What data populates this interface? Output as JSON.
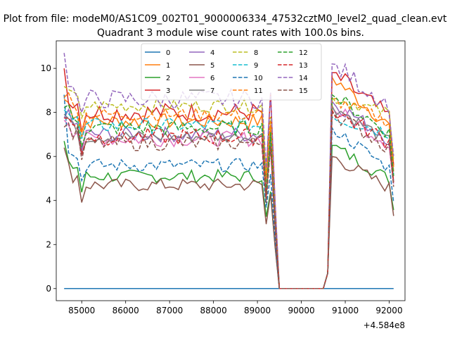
{
  "figure": {
    "suptitle": "Plot from file: modeM0/AS1C09_002T01_9000006334_47532cztM0_level2_quad_clean.evt"
  },
  "chart_data": {
    "type": "line",
    "title": "Quadrant 3 module wise count rates with 100.0s bins.",
    "xlabel": "",
    "ylabel": "",
    "x_offset_label": "+4.584e8",
    "xlim": [
      84420,
      92360
    ],
    "ylim": [
      -0.55,
      11.25
    ],
    "xticks": [
      85000,
      86000,
      87000,
      88000,
      89000,
      90000,
      91000,
      92000
    ],
    "xtick_labels": [
      "85000",
      "86000",
      "87000",
      "88000",
      "89000",
      "90000",
      "91000",
      "92000"
    ],
    "yticks": [
      0,
      2,
      4,
      6,
      8,
      10
    ],
    "ytick_labels": [
      "0",
      "2",
      "4",
      "6",
      "8",
      "10"
    ],
    "grid": false,
    "legend_placement": "upper-center, 4 columns",
    "x": {
      "start": 84600,
      "step": 100,
      "count": 76
    },
    "gap": {
      "zero_from": 89500,
      "zero_to": 90500
    },
    "series": [
      {
        "name": "0",
        "color": "#1f77b4",
        "dash": "solid",
        "level": 0,
        "seg1_end": 0,
        "seg2_start": 0,
        "zero": true
      },
      {
        "name": "1",
        "color": "#ff7f0e",
        "dash": "solid",
        "level": 7.6,
        "seg1_end": 7.3,
        "seg2_start": 9.6,
        "noise": 0.35
      },
      {
        "name": "2",
        "color": "#2ca02c",
        "dash": "solid",
        "level": 5.1,
        "seg1_end": 4.4,
        "seg2_start": 6.5,
        "noise": 0.3,
        "first": 6.7
      },
      {
        "name": "3",
        "color": "#d62728",
        "dash": "solid",
        "level": 8.0,
        "seg1_end": 8.9,
        "seg2_start": 9.8,
        "noise": 0.45,
        "first": 10.0
      },
      {
        "name": "4",
        "color": "#9467bd",
        "dash": "solid",
        "level": 7.0,
        "seg1_end": 7.1,
        "seg2_start": 8.5,
        "noise": 0.35
      },
      {
        "name": "5",
        "color": "#8c564b",
        "dash": "solid",
        "level": 4.7,
        "seg1_end": 4.3,
        "seg2_start": 6.0,
        "noise": 0.3,
        "first": 6.4,
        "last": 3.3
      },
      {
        "name": "6",
        "color": "#e377c2",
        "dash": "solid",
        "level": 6.8,
        "seg1_end": 6.6,
        "seg2_start": 8.2,
        "noise": 0.35
      },
      {
        "name": "7",
        "color": "#7f7f7f",
        "dash": "solid",
        "level": 6.9,
        "seg1_end": 6.8,
        "seg2_start": 8.3,
        "noise": 0.3
      },
      {
        "name": "8",
        "color": "#bcbd22",
        "dash": "dashed",
        "level": 8.3,
        "seg1_end": 7.8,
        "seg2_start": 8.7,
        "noise": 0.3
      },
      {
        "name": "9",
        "color": "#17becf",
        "dash": "dashed",
        "level": 7.4,
        "seg1_end": 6.5,
        "seg2_start": 7.8,
        "noise": 0.35
      },
      {
        "name": "10",
        "color": "#1f77b4",
        "dash": "dashed",
        "level": 5.6,
        "seg1_end": 5.2,
        "seg2_start": 7.3,
        "noise": 0.3,
        "first": 8.8
      },
      {
        "name": "11",
        "color": "#ff7f0e",
        "dash": "dashed",
        "level": 7.9,
        "seg1_end": 7.6,
        "seg2_start": 8.6,
        "noise": 0.3
      },
      {
        "name": "12",
        "color": "#2ca02c",
        "dash": "dashed",
        "level": 7.3,
        "seg1_end": 7.1,
        "seg2_start": 8.8,
        "noise": 0.35
      },
      {
        "name": "13",
        "color": "#d62728",
        "dash": "dashed",
        "level": 6.9,
        "seg1_end": 6.4,
        "seg2_start": 8.1,
        "noise": 0.4
      },
      {
        "name": "14",
        "color": "#9467bd",
        "dash": "dashed",
        "level": 8.6,
        "seg1_end": 8.9,
        "seg2_start": 10.2,
        "noise": 0.45,
        "first": 10.7
      },
      {
        "name": "15",
        "color": "#8c564b",
        "dash": "dashed",
        "level": 6.6,
        "seg1_end": 6.5,
        "seg2_start": 8.0,
        "noise": 0.35
      }
    ]
  }
}
